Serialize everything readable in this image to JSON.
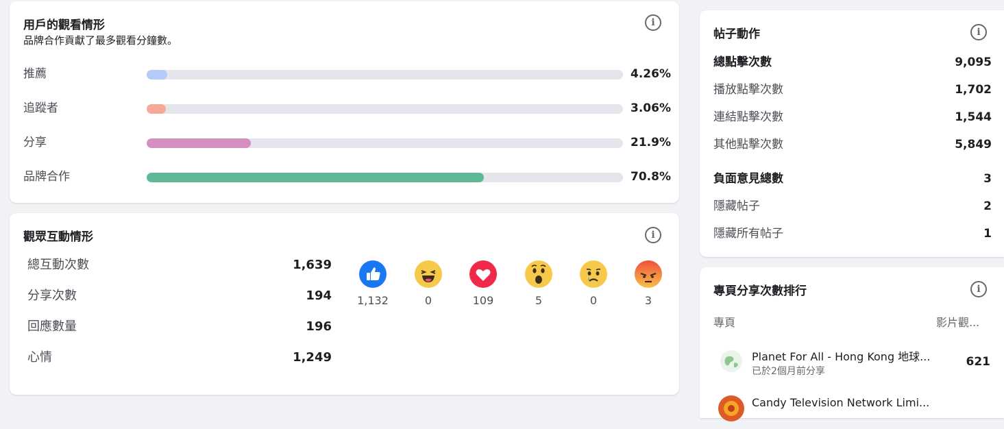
{
  "viewing": {
    "title": "用戶的觀看情形",
    "subtitle": "品牌合作貢獻了最多觀看分鐘數。",
    "rows": [
      {
        "label": "推薦",
        "value": "4.26%",
        "fraction": 0.0426,
        "color": "#b4cbfa"
      },
      {
        "label": "追蹤者",
        "value": "3.06%",
        "fraction": 0.0306,
        "color": "#f8a898"
      },
      {
        "label": "分享",
        "value": "21.9%",
        "fraction": 0.219,
        "color": "#d48ec0"
      },
      {
        "label": "品牌合作",
        "value": "70.8%",
        "fraction": 0.708,
        "color": "#5fb895"
      }
    ]
  },
  "engagement": {
    "title": "觀眾互動情形",
    "rows": [
      {
        "label": "總互動次數",
        "value": "1,639"
      },
      {
        "label": "分享次數",
        "value": "194"
      },
      {
        "label": "回應數量",
        "value": "196"
      },
      {
        "label": "心情",
        "value": "1,249"
      }
    ],
    "reactions": [
      {
        "icon": "like-icon",
        "count": "1,132"
      },
      {
        "icon": "haha-icon",
        "count": "0"
      },
      {
        "icon": "love-icon",
        "count": "109"
      },
      {
        "icon": "wow-icon",
        "count": "5"
      },
      {
        "icon": "sad-icon",
        "count": "0"
      },
      {
        "icon": "angry-icon",
        "count": "3"
      }
    ]
  },
  "post_actions": {
    "title": "帖子動作",
    "rows": [
      {
        "label": "總點擊次數",
        "value": "9,095",
        "bold": true
      },
      {
        "label": "播放點擊次數",
        "value": "1,702",
        "bold": false
      },
      {
        "label": "連結點擊次數",
        "value": "1,544",
        "bold": false
      },
      {
        "label": "其他點擊次數",
        "value": "5,849",
        "bold": false
      },
      {
        "label": "負面意見總數",
        "value": "3",
        "bold": true
      },
      {
        "label": "隱藏帖子",
        "value": "2",
        "bold": false
      },
      {
        "label": "隱藏所有帖子",
        "value": "1",
        "bold": false
      }
    ]
  },
  "page_shares": {
    "title": "專頁分享次數排行",
    "col_page": "專頁",
    "col_views": "影片觀...",
    "items": [
      {
        "name": "Planet For All - Hong Kong 地球...",
        "sub": "已於2個月前分享",
        "value": "621"
      },
      {
        "name": "Candy Television Network Limi...",
        "sub": "",
        "value": ""
      }
    ]
  }
}
